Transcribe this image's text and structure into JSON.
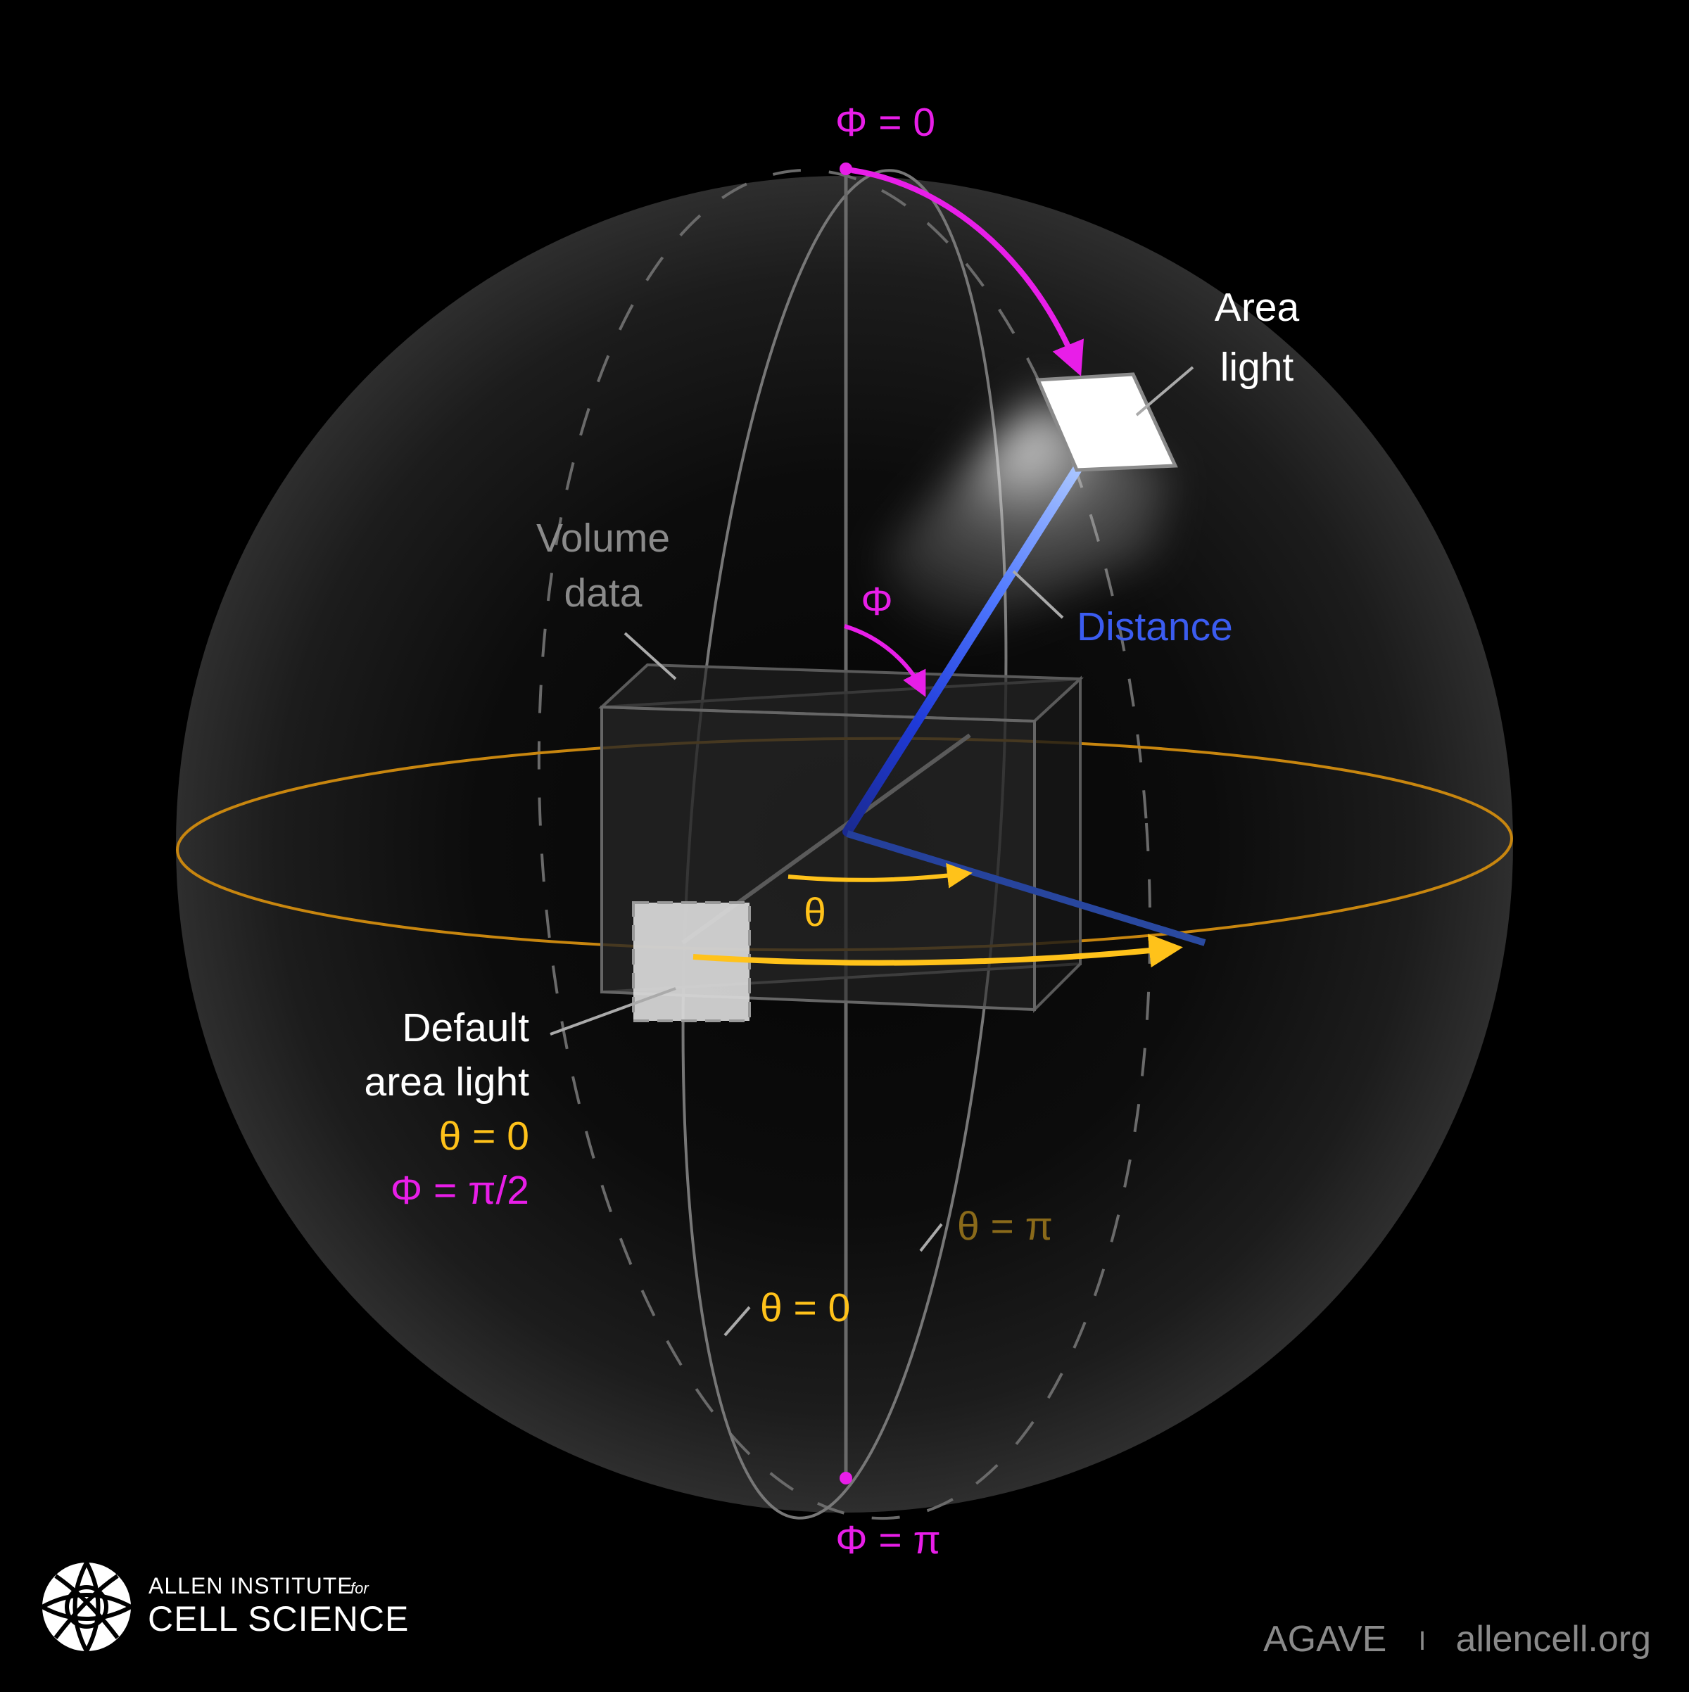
{
  "labels": {
    "phi_zero": "Φ = 0",
    "phi_pi": "Φ = π",
    "area_light_line1": "Area",
    "area_light_line2": "light",
    "volume_data_line1": "Volume",
    "volume_data_line2": "data",
    "phi_symbol": "Φ",
    "distance": "Distance",
    "theta_symbol": "θ",
    "default_line1": "Default",
    "default_line2": "area light",
    "default_theta": "θ = 0",
    "default_phi": "Φ = π/2",
    "theta_pi": "θ = π",
    "theta_zero": "θ = 0"
  },
  "footer": {
    "org_line1": "ALLEN INSTITUTE",
    "org_for": "for",
    "org_line2": "CELL SCIENCE",
    "product": "AGAVE",
    "separator": "I",
    "site": "allencell.org"
  },
  "colors": {
    "phi": "#e81ee8",
    "theta": "#ffc21a",
    "distance": "#3b5cf0",
    "equator": "#c8860f",
    "muted_text": "#8a8a8a",
    "theta_pi_text": "#8a6a1a"
  }
}
